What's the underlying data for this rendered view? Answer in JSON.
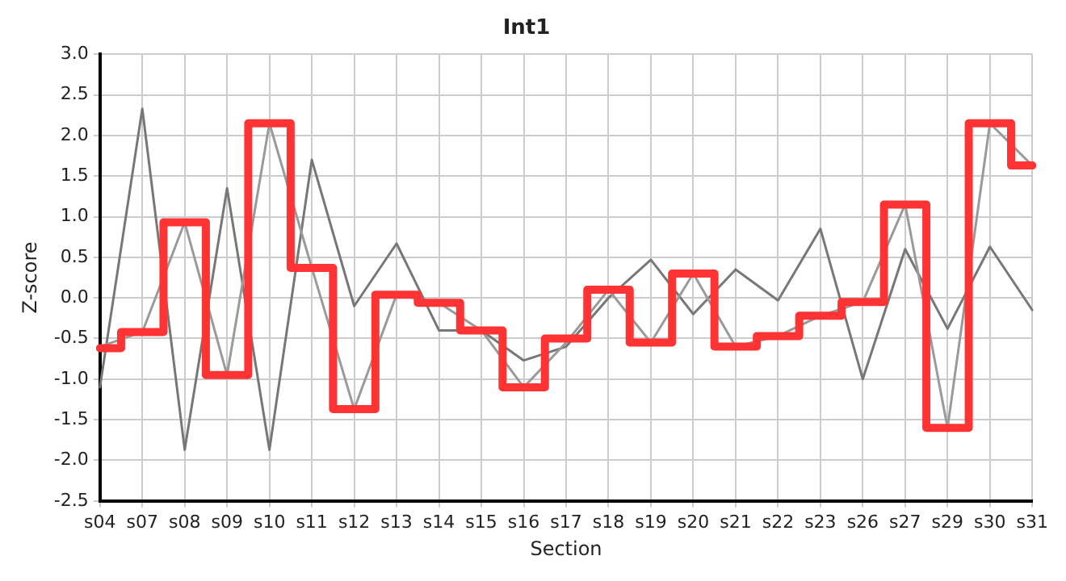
{
  "chart_data": {
    "type": "line",
    "title": "Int1",
    "xlabel": "Section",
    "ylabel": "Z-score",
    "categories": [
      "s04",
      "s07",
      "s08",
      "s09",
      "s10",
      "s11",
      "s12",
      "s13",
      "s14",
      "s15",
      "s16",
      "s17",
      "s18",
      "s19",
      "s20",
      "s21",
      "s22",
      "s23",
      "s26",
      "s27",
      "s29",
      "s30",
      "s31"
    ],
    "series": [
      {
        "color": "#777777",
        "values": [
          -1.1,
          2.33,
          -1.87,
          1.35,
          -1.87,
          1.7,
          -0.1,
          0.67,
          -0.4,
          -0.4,
          -0.77,
          -0.6,
          0.0,
          0.47,
          -0.2,
          0.35,
          -0.03,
          0.85,
          -1.0,
          0.6,
          -0.38,
          0.63,
          -0.15
        ]
      },
      {
        "color": "#9a9a9a",
        "values": [
          -0.6,
          -0.42,
          0.93,
          -0.95,
          2.15,
          0.37,
          -1.37,
          0.04,
          -0.06,
          -0.4,
          -1.1,
          -0.55,
          0.1,
          -0.55,
          0.3,
          -0.6,
          -0.47,
          -0.22,
          -0.05,
          1.15,
          -1.6,
          2.15,
          1.63
        ]
      },
      {
        "type": "step",
        "color": "#ff3333",
        "values": [
          -0.62,
          -0.42,
          0.93,
          -0.95,
          2.15,
          0.37,
          -1.37,
          0.04,
          -0.06,
          -0.4,
          -1.1,
          -0.5,
          0.1,
          -0.55,
          0.3,
          -0.6,
          -0.47,
          -0.22,
          -0.05,
          1.15,
          -1.6,
          2.15,
          1.63
        ]
      }
    ],
    "ylim": [
      -2.5,
      3.0
    ],
    "yticks": [
      {
        "value": -2.5,
        "label": "-2.5"
      },
      {
        "value": -2,
        "label": "-2.0"
      },
      {
        "value": -1.5,
        "label": "-1.5"
      },
      {
        "value": -1,
        "label": "-1.0"
      },
      {
        "value": -0.5,
        "label": "-0.5"
      },
      {
        "value": 0,
        "label": "0.0"
      },
      {
        "value": 0.5,
        "label": "0.5"
      },
      {
        "value": 1,
        "label": "1.0"
      },
      {
        "value": 1.5,
        "label": "1.5"
      },
      {
        "value": 2,
        "label": "2.0"
      },
      {
        "value": 2.5,
        "label": "2.5"
      },
      {
        "value": 3,
        "label": "3.0"
      }
    ],
    "grid": true,
    "legend": false,
    "marker": "none",
    "line_style": "solid"
  }
}
